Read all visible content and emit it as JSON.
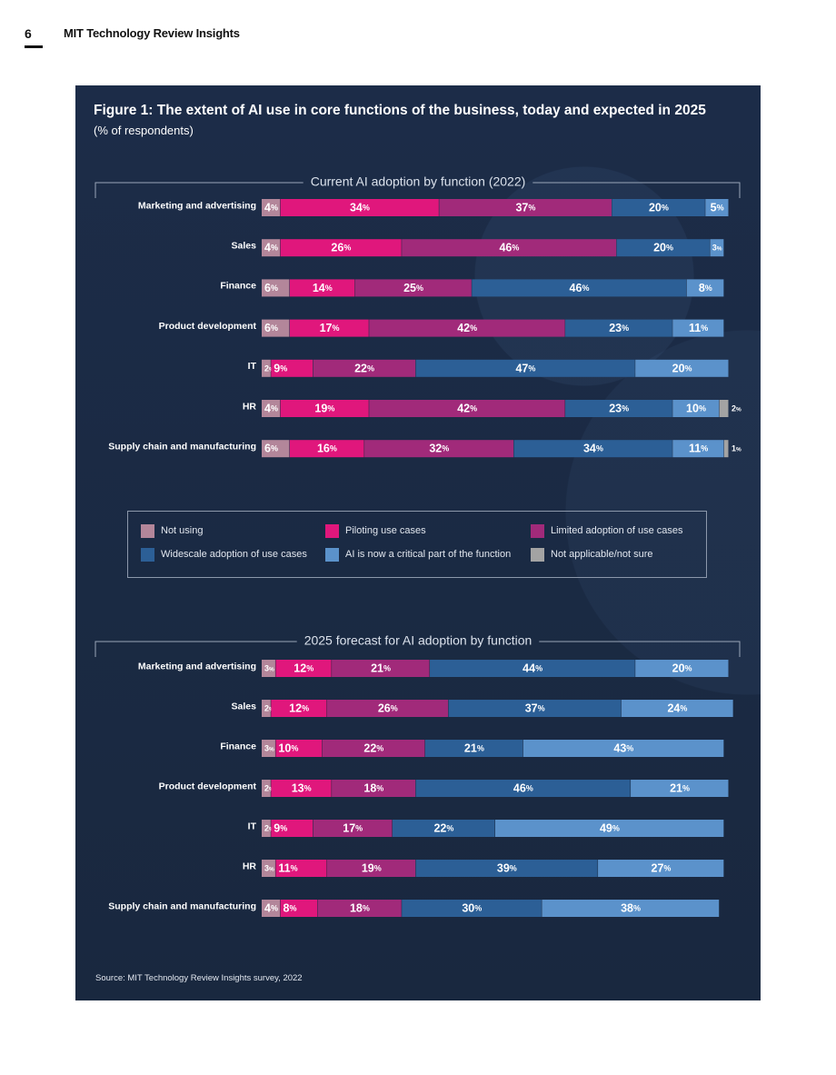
{
  "page": {
    "number": "6",
    "publication": "MIT Technology Review Insights"
  },
  "figure": {
    "title": "Figure 1: The extent of AI use in core functions of the business, today and expected in 2025",
    "subtitle": "(% of respondents)",
    "source": "Source: MIT Technology Review Insights survey, 2022"
  },
  "legend": [
    {
      "label": "Not using",
      "color": "#b3869a"
    },
    {
      "label": "Piloting use cases",
      "color": "#e0177c"
    },
    {
      "label": "Limited adoption of use cases",
      "color": "#a12a7a"
    },
    {
      "label": "Widescale adoption of use cases",
      "color": "#2c5f96"
    },
    {
      "label": "AI is now a critical part of the function",
      "color": "#5b92cb"
    },
    {
      "label": "Not applicable/not sure",
      "color": "#a3a3a3"
    }
  ],
  "chart_data": [
    {
      "type": "bar",
      "orientation": "horizontal",
      "stacked": true,
      "title": "Current AI adoption by function (2022)",
      "categories": [
        "Marketing and  advertising",
        "Sales",
        "Finance",
        "Product development",
        "IT",
        "HR",
        "Supply chain and manufacturing"
      ],
      "series": [
        {
          "name": "Not using",
          "values": [
            4,
            4,
            6,
            6,
            2,
            4,
            6
          ]
        },
        {
          "name": "Piloting use cases",
          "values": [
            34,
            26,
            14,
            17,
            9,
            19,
            16
          ]
        },
        {
          "name": "Limited adoption of use cases",
          "values": [
            37,
            46,
            25,
            42,
            22,
            42,
            32
          ]
        },
        {
          "name": "Widescale adoption of use cases",
          "values": [
            20,
            20,
            46,
            23,
            47,
            23,
            34
          ]
        },
        {
          "name": "AI is now a critical part of the function",
          "values": [
            5,
            3,
            8,
            11,
            20,
            10,
            11
          ]
        },
        {
          "name": "Not applicable/not sure",
          "values": [
            0,
            0,
            0,
            0,
            0,
            2,
            1
          ]
        }
      ],
      "xlim": [
        0,
        100
      ],
      "value_suffix": "%"
    },
    {
      "type": "bar",
      "orientation": "horizontal",
      "stacked": true,
      "title": "2025 forecast for AI adoption by function",
      "categories": [
        "Marketing and advertising",
        "Sales",
        "Finance",
        "Product development",
        "IT",
        "HR",
        "Supply chain and manufacturing"
      ],
      "series": [
        {
          "name": "Not using",
          "values": [
            3,
            2,
            3,
            2,
            2,
            3,
            4
          ]
        },
        {
          "name": "Piloting use cases",
          "values": [
            12,
            12,
            10,
            13,
            9,
            11,
            8
          ]
        },
        {
          "name": "Limited adoption of use cases",
          "values": [
            21,
            26,
            22,
            18,
            17,
            19,
            18
          ]
        },
        {
          "name": "Widescale adoption of use cases",
          "values": [
            44,
            37,
            21,
            46,
            22,
            39,
            30
          ]
        },
        {
          "name": "AI is now a critical part of the function",
          "values": [
            20,
            24,
            43,
            21,
            49,
            27,
            38
          ]
        },
        {
          "name": "Not applicable/not sure",
          "values": [
            0,
            0,
            0,
            0,
            0,
            0,
            0
          ]
        }
      ],
      "xlim": [
        0,
        100
      ],
      "value_suffix": "%"
    }
  ]
}
